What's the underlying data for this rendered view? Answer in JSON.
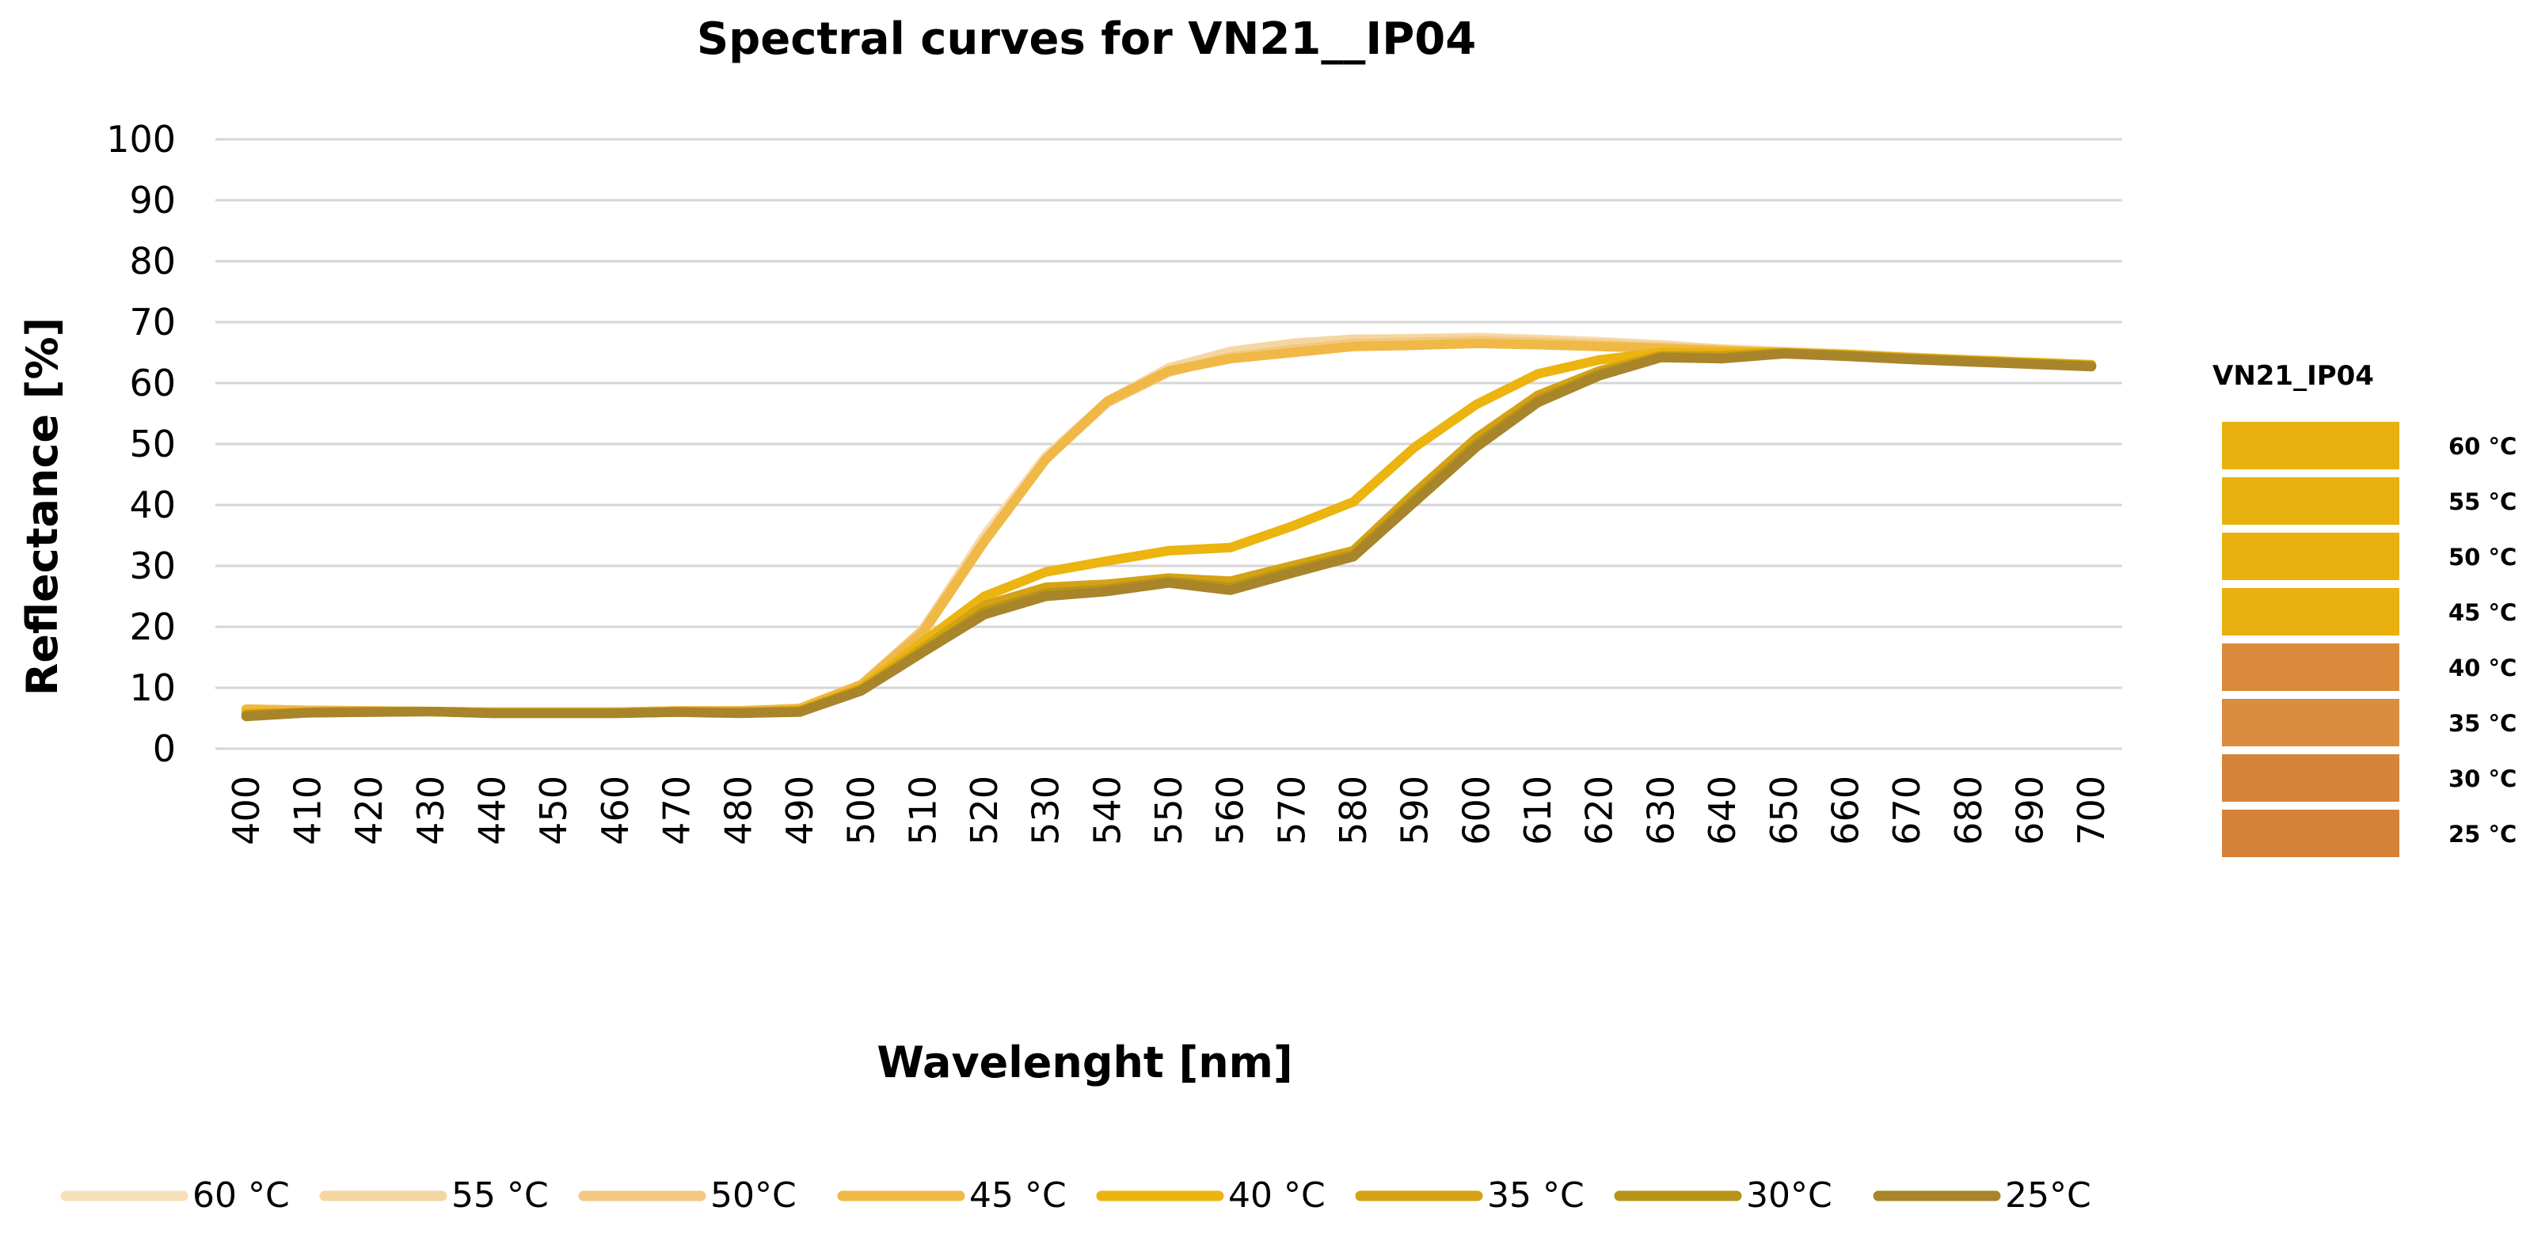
{
  "chart_data": {
    "type": "line",
    "title": "Spectral curves for  VN21__IP04",
    "xlabel": "Wavelenght [nm]",
    "ylabel": "Reflectance [%]",
    "ylim": [
      0,
      100
    ],
    "yticks": [
      "0",
      "10",
      "20",
      "30",
      "40",
      "50",
      "60",
      "70",
      "80",
      "90",
      "100"
    ],
    "x": [
      400,
      410,
      420,
      430,
      440,
      450,
      460,
      470,
      480,
      490,
      500,
      510,
      520,
      530,
      540,
      550,
      560,
      570,
      580,
      590,
      600,
      610,
      620,
      630,
      640,
      650,
      660,
      670,
      680,
      690,
      700
    ],
    "xtick_labels": [
      "400",
      "410",
      "420",
      "430",
      "440",
      "450",
      "460",
      "470",
      "480",
      "490",
      "500",
      "510",
      "520",
      "530",
      "540",
      "550",
      "560",
      "570",
      "580",
      "590",
      "600",
      "610",
      "620",
      "630",
      "640",
      "650",
      "660",
      "670",
      "680",
      "690",
      "700"
    ],
    "grid": true,
    "legend_position": "bottom",
    "series": [
      {
        "name": "60 °C",
        "color": "#f7dfb8",
        "values": [
          6.5,
          6.3,
          6.2,
          6.1,
          6.0,
          6.0,
          6.0,
          6.2,
          6.2,
          6.6,
          10.5,
          19.5,
          35.0,
          48.0,
          57.0,
          62.0,
          65.0,
          66.5,
          67.2,
          67.3,
          67.5,
          67.2,
          66.8,
          66.3,
          65.6,
          65.2,
          64.8,
          64.3,
          63.8,
          63.4,
          63.0
        ]
      },
      {
        "name": "55 °C",
        "color": "#f5d6a2",
        "values": [
          6.5,
          6.3,
          6.2,
          6.1,
          6.0,
          6.0,
          6.0,
          6.2,
          6.2,
          6.6,
          10.5,
          19.5,
          34.5,
          47.5,
          57.0,
          62.5,
          65.2,
          66.5,
          67.2,
          67.2,
          67.3,
          67.0,
          66.6,
          66.1,
          65.5,
          65.1,
          64.7,
          64.2,
          63.7,
          63.3,
          63.0
        ]
      },
      {
        "name": "50°C",
        "color": "#f3c880",
        "values": [
          6.5,
          6.3,
          6.2,
          6.1,
          6.0,
          6.0,
          6.0,
          6.2,
          6.2,
          6.6,
          10.5,
          19.5,
          34.0,
          47.5,
          56.8,
          61.8,
          64.3,
          65.5,
          66.5,
          66.7,
          66.9,
          66.7,
          66.3,
          65.9,
          65.4,
          65.0,
          64.6,
          64.1,
          63.7,
          63.3,
          62.9
        ]
      },
      {
        "name": "45 °C",
        "color": "#f0b846",
        "values": [
          6.5,
          6.3,
          6.2,
          6.1,
          6.0,
          6.0,
          6.0,
          6.2,
          6.2,
          6.6,
          10.5,
          19.0,
          34.0,
          47.5,
          57.0,
          62.0,
          64.0,
          65.0,
          66.0,
          66.2,
          66.5,
          66.3,
          66.0,
          65.7,
          65.3,
          65.0,
          64.6,
          64.1,
          63.7,
          63.3,
          62.9
        ]
      },
      {
        "name": "40 °C",
        "color": "#ebb40f",
        "values": [
          5.8,
          6.0,
          6.1,
          6.1,
          5.9,
          5.9,
          5.9,
          6.1,
          6.0,
          6.3,
          10.0,
          17.5,
          25.0,
          29.0,
          30.8,
          32.5,
          33.0,
          36.5,
          40.5,
          49.5,
          56.5,
          61.5,
          63.8,
          65.0,
          65.0,
          65.0,
          64.7,
          64.2,
          63.8,
          63.4,
          63.0
        ]
      },
      {
        "name": "35 °C",
        "color": "#d4a214",
        "values": [
          5.6,
          6.0,
          6.1,
          6.1,
          5.9,
          5.9,
          5.9,
          6.1,
          6.0,
          6.2,
          9.8,
          16.5,
          23.5,
          26.5,
          27.0,
          28.0,
          27.5,
          30.0,
          32.5,
          42.0,
          51.0,
          58.0,
          62.0,
          64.5,
          64.5,
          65.0,
          64.6,
          64.1,
          63.7,
          63.3,
          62.9
        ]
      },
      {
        "name": "30°C",
        "color": "#b89419",
        "values": [
          5.5,
          5.9,
          6.0,
          6.1,
          5.8,
          5.8,
          5.8,
          6.0,
          5.9,
          6.1,
          9.6,
          16.0,
          22.5,
          25.5,
          26.2,
          27.5,
          26.5,
          29.2,
          31.8,
          41.0,
          50.0,
          57.2,
          61.5,
          64.3,
          64.2,
          64.9,
          64.5,
          64.0,
          63.6,
          63.2,
          62.8
        ]
      },
      {
        "name": "25°C",
        "color": "#a8842a",
        "values": [
          5.3,
          5.9,
          6.0,
          6.1,
          5.8,
          5.8,
          5.8,
          6.0,
          5.8,
          6.0,
          9.5,
          15.8,
          22.0,
          25.0,
          25.8,
          27.2,
          26.0,
          28.8,
          31.5,
          40.5,
          49.5,
          56.8,
          61.2,
          64.2,
          64.0,
          64.8,
          64.4,
          63.9,
          63.5,
          63.1,
          62.7
        ]
      }
    ],
    "swatch_panel": {
      "title": "VN21_IP04",
      "items": [
        {
          "label": "60 °C",
          "color": "#e8b10f"
        },
        {
          "label": "55 °C",
          "color": "#e8b10f"
        },
        {
          "label": "50 °C",
          "color": "#e8b10f"
        },
        {
          "label": "45 °C",
          "color": "#e8b10f"
        },
        {
          "label": "40 °C",
          "color": "#d98a3a"
        },
        {
          "label": "35 °C",
          "color": "#da8c3f"
        },
        {
          "label": "30 °C",
          "color": "#d6843a"
        },
        {
          "label": "25 °C",
          "color": "#d4823a"
        }
      ]
    }
  }
}
